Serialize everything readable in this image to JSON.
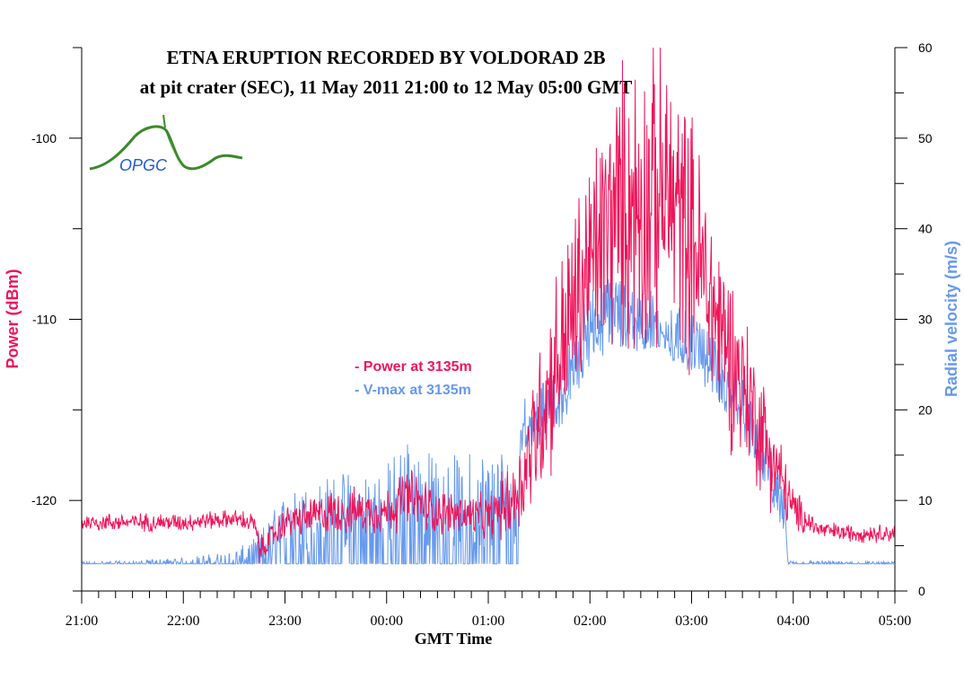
{
  "chart_data": {
    "type": "line",
    "title_line1": "ETNA ERUPTION  RECORDED BY VOLDORAD 2B",
    "title_line2": "at pit crater (SEC), 11 May 2011 21:00 to 12 May 05:00 GMT",
    "xlabel": "GMT Time",
    "ylabel_left": "Power (dBm)",
    "ylabel_right": "Radial velocity (m/s)",
    "x_tick_labels": [
      "21:00",
      "22:00",
      "23:00",
      "00:00",
      "01:00",
      "02:00",
      "03:00",
      "04:00",
      "05:00"
    ],
    "x_range_hours": [
      0,
      8
    ],
    "y_left_ticks": [
      -100,
      -110,
      -120
    ],
    "y_left_range": [
      -125,
      -95
    ],
    "y_right_ticks": [
      0,
      10,
      20,
      30,
      40,
      50,
      60
    ],
    "y_right_range": [
      0,
      60
    ],
    "logo_text": "OPGC",
    "legend": [
      {
        "label": "- Power at 3135m",
        "color": "#f0145a"
      },
      {
        "label": "- V-max at 3135m",
        "color": "#6699ee"
      }
    ],
    "series": [
      {
        "name": "- Power at 3135m",
        "axis": "left",
        "color": "#f0145a",
        "x": [
          0,
          0.5,
          1.0,
          1.5,
          1.7,
          1.75,
          2.0,
          2.5,
          3.0,
          3.2,
          3.5,
          4.0,
          4.3,
          4.5,
          4.75,
          5.0,
          5.25,
          5.5,
          5.75,
          6.0,
          6.25,
          6.5,
          6.75,
          7.0,
          7.25,
          7.5,
          8.0
        ],
        "y": [
          -121.2,
          -121.2,
          -121.2,
          -121.0,
          -121.3,
          -122.8,
          -121.2,
          -120.6,
          -120.6,
          -119.8,
          -120.6,
          -121.0,
          -119.5,
          -115.5,
          -111.0,
          -107.0,
          -104.0,
          -103.5,
          -103.0,
          -105.5,
          -110.0,
          -113.5,
          -117.0,
          -120.5,
          -121.6,
          -121.8,
          -121.8
        ],
        "spread": [
          0.4,
          0.4,
          0.4,
          0.4,
          0.5,
          0.6,
          0.7,
          1.0,
          1.0,
          1.4,
          1.0,
          1.0,
          2.0,
          3.5,
          4.5,
          5.0,
          6.0,
          7.0,
          6.5,
          5.5,
          4.5,
          3.5,
          2.5,
          1.0,
          0.4,
          0.4,
          0.4
        ]
      },
      {
        "name": "- V-max at 3135m",
        "axis": "right",
        "color": "#6699ee",
        "x": [
          0,
          0.5,
          1.0,
          1.5,
          1.7,
          2.0,
          2.5,
          3.0,
          3.2,
          3.5,
          4.0,
          4.3,
          4.31,
          4.5,
          4.75,
          5.0,
          5.25,
          5.5,
          5.75,
          6.0,
          6.25,
          6.5,
          6.75,
          6.92,
          6.95,
          8.0
        ],
        "y": [
          3.0,
          3.0,
          3.0,
          3.0,
          3.5,
          6.0,
          6.5,
          7.0,
          9.0,
          7.0,
          7.5,
          8.0,
          18.0,
          19.0,
          22.0,
          29.0,
          30.5,
          30.0,
          28.5,
          27.0,
          24.0,
          20.0,
          14.0,
          8.0,
          3.0,
          3.0
        ],
        "spread": [
          0.2,
          0.3,
          0.6,
          1.2,
          2.0,
          4.0,
          5.5,
          6.0,
          7.0,
          6.5,
          7.0,
          7.0,
          3.0,
          3.0,
          3.5,
          4.0,
          4.0,
          3.5,
          3.0,
          3.0,
          3.0,
          3.0,
          3.0,
          2.0,
          0.3,
          0.2
        ]
      }
    ],
    "grid": false
  }
}
